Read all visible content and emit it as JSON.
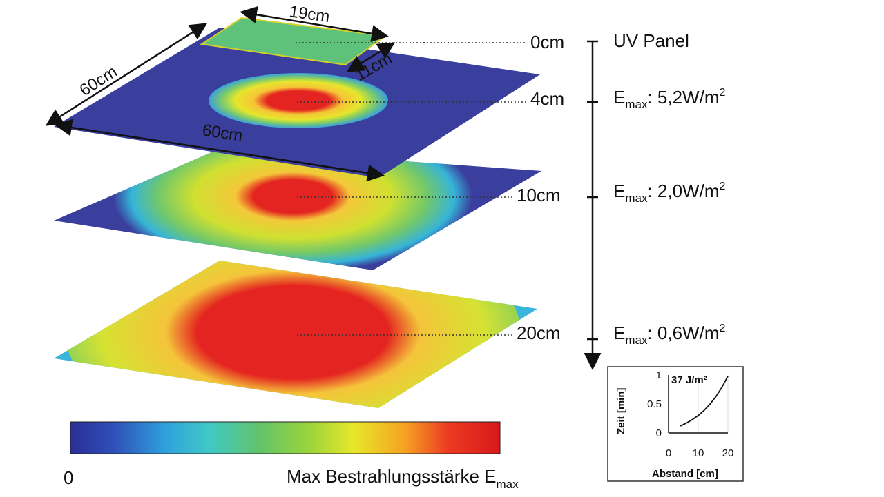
{
  "dimensions": {
    "panel_width": "19cm",
    "panel_depth": "11cm",
    "plane_depth": "60cm",
    "plane_width": "60cm"
  },
  "levels": [
    {
      "distance": "0cm",
      "note": "UV Panel"
    },
    {
      "distance": "4cm",
      "emax_label": "E",
      "emax_sub": "max",
      "emax_value": ": 5,2W/m",
      "emax_sup": "2"
    },
    {
      "distance": "10cm",
      "emax_label": "E",
      "emax_sub": "max",
      "emax_value": ": 2,0W/m",
      "emax_sup": "2"
    },
    {
      "distance": "20cm",
      "emax_label": "E",
      "emax_sub": "max",
      "emax_value": ": 0,6W/m",
      "emax_sup": "2"
    }
  ],
  "colorbar": {
    "min_label": "0",
    "title": "Max Bestrahlungsstärke E",
    "title_sub": "max",
    "colors": [
      "#2b2f96",
      "#2f4fb8",
      "#2fa0dc",
      "#3fc8c8",
      "#62c46a",
      "#9ed43a",
      "#e6e82a",
      "#f6a022",
      "#ec3a22",
      "#d8181c"
    ]
  },
  "heat_colors": {
    "background": "#3a3f9e",
    "ring1": "#2fa6e0",
    "ring2": "#5fc870",
    "ring3": "#d8e22e",
    "ring4": "#f2c83a",
    "core": "#e42420",
    "panel": "#5fc27a"
  },
  "chart_data": {
    "type": "line",
    "annotation": "37 J/m²",
    "xlabel": "Abstand [cm]",
    "ylabel": "Zeit [min]",
    "xlim": [
      0,
      20
    ],
    "ylim": [
      0,
      1
    ],
    "xticks": [
      "0",
      "10",
      "20"
    ],
    "yticks": [
      "0",
      "0.5",
      "1"
    ],
    "x": [
      4,
      6,
      8,
      10,
      12,
      14,
      16,
      18,
      20
    ],
    "y": [
      0.12,
      0.17,
      0.23,
      0.3,
      0.39,
      0.5,
      0.63,
      0.79,
      0.98
    ]
  }
}
